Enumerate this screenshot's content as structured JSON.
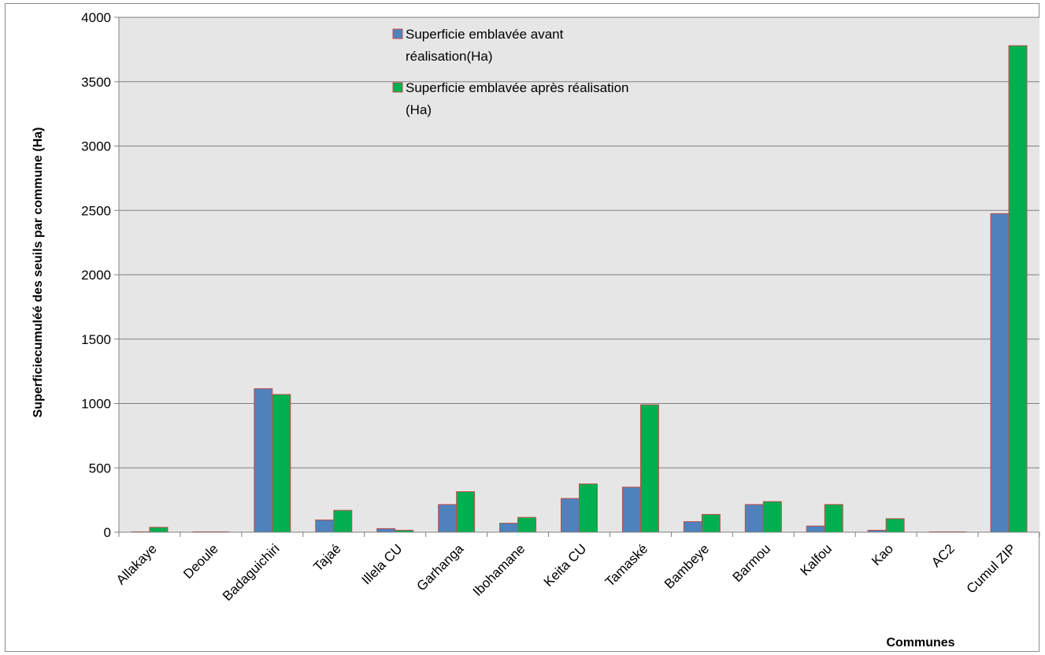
{
  "chart_data": {
    "type": "bar",
    "title": "",
    "xlabel": "Communes",
    "ylabel": "Superficiecumuléé des seuils par commune (Ha)",
    "ylim": [
      0,
      4000
    ],
    "yticks": [
      0,
      500,
      1000,
      1500,
      2000,
      2500,
      3000,
      3500,
      4000
    ],
    "grid": true,
    "legend_position": "top-center",
    "categories": [
      "Allakaye",
      "Deoule",
      "Badaguichiri",
      "Tajaé",
      "Illela CU",
      "Garhanga",
      "Ibohamane",
      "Keita CU",
      "Tamaské",
      "Bambeye",
      "Barmou",
      "Kalfou",
      "Kao",
      "AC2",
      "Cumul ZIP"
    ],
    "series": [
      {
        "name": "Superficie emblavée avant réalisation(Ha)",
        "legend_lines": [
          "Superficie emblavée avant",
          "réalisation(Ha)"
        ],
        "color": "#4f81bd",
        "values": [
          3,
          0,
          1115,
          95,
          28,
          215,
          70,
          262,
          350,
          82,
          215,
          48,
          15,
          0,
          2475
        ]
      },
      {
        "name": "Superficie emblavée après réalisation (Ha)",
        "legend_lines": [
          "Superficie emblavée après réalisation",
          "(Ha)"
        ],
        "color": "#00b050",
        "values": [
          38,
          2,
          1070,
          170,
          15,
          315,
          115,
          375,
          990,
          138,
          238,
          215,
          105,
          2,
          3780
        ]
      }
    ],
    "plot_background": "#e6e6e6",
    "bar_outline": "#c0504d"
  }
}
